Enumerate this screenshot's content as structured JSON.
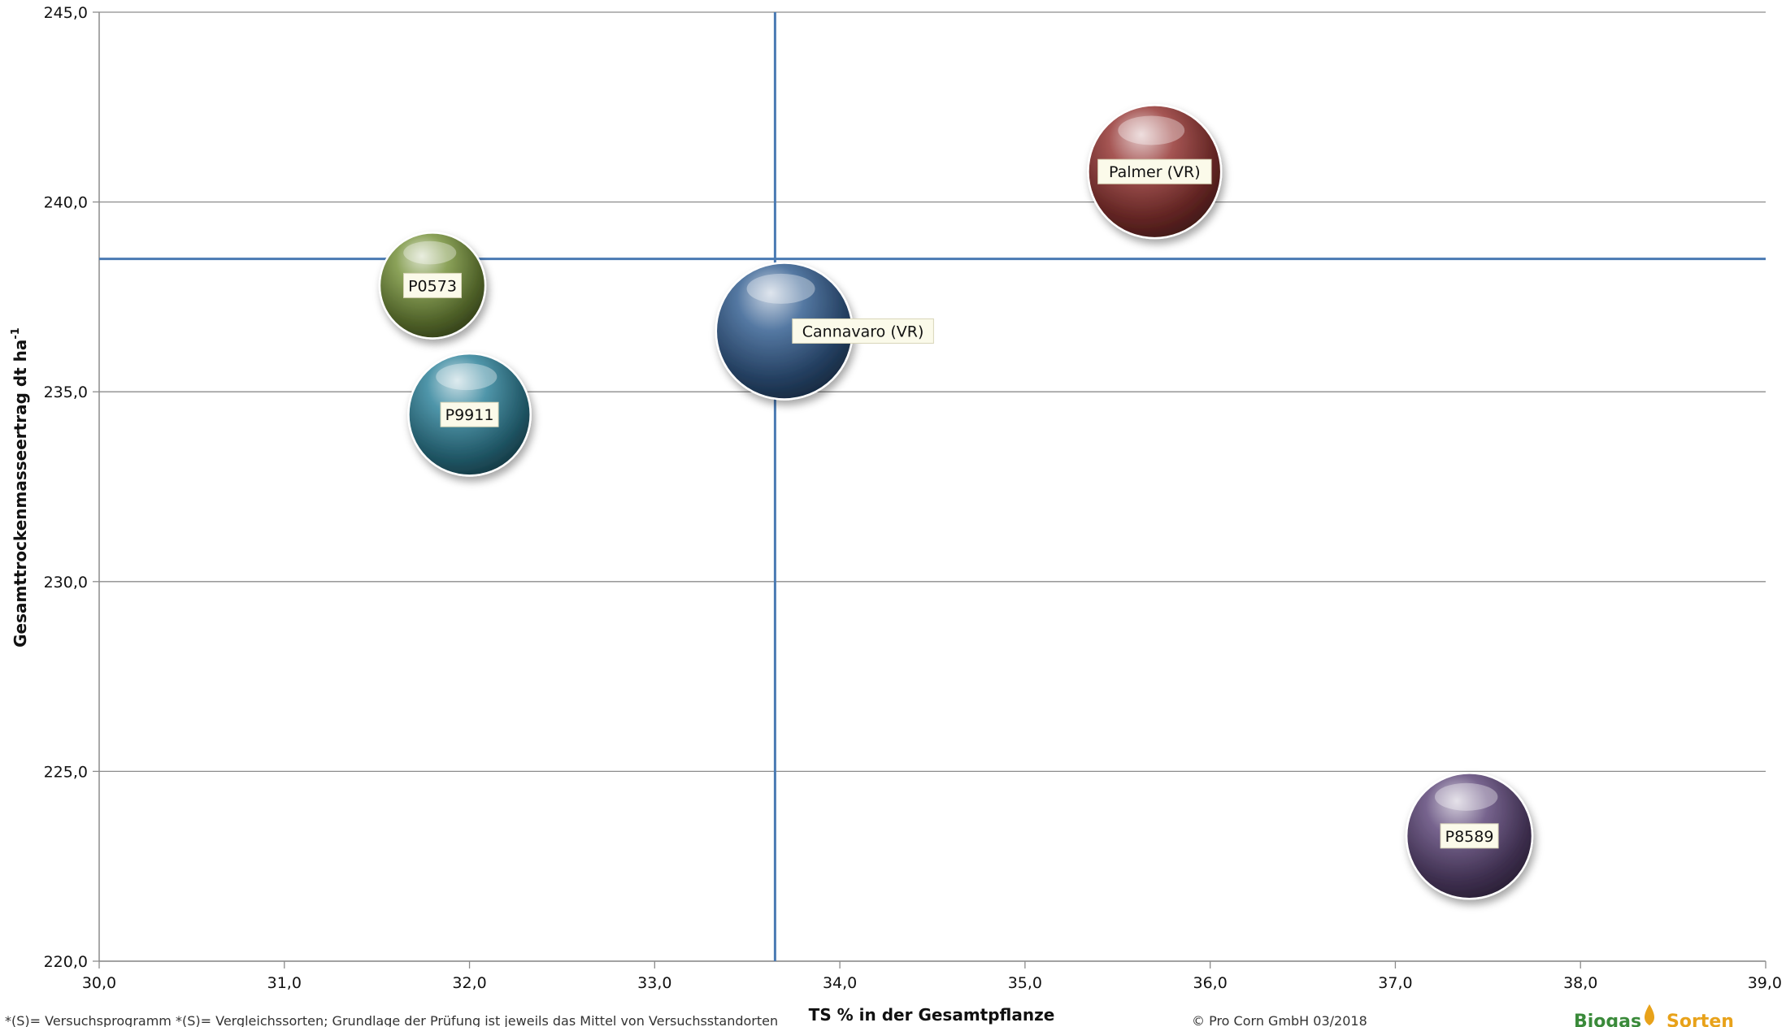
{
  "chart_data": {
    "type": "bubble",
    "xlabel": "TS % in der Gesamtpflanze",
    "ylabel": "Gesamttrockenmasseertrag dt ha",
    "ylabel_superscript": "-1",
    "xlim": [
      30.0,
      39.0
    ],
    "ylim": [
      220.0,
      245.0
    ],
    "x_ticks": [
      "30,0",
      "31,0",
      "32,0",
      "33,0",
      "34,0",
      "35,0",
      "36,0",
      "37,0",
      "38,0",
      "39,0"
    ],
    "y_ticks": [
      "220,0",
      "225,0",
      "230,0",
      "235,0",
      "240,0",
      "245,0"
    ],
    "x_tick_values": [
      30,
      31,
      32,
      33,
      34,
      35,
      36,
      37,
      38,
      39
    ],
    "y_tick_values": [
      220,
      225,
      230,
      235,
      240,
      245
    ],
    "grid": "horizontal",
    "reference_lines": {
      "x": 33.65,
      "y": 238.5,
      "color": "#4a7ab3"
    },
    "points": [
      {
        "name": "P0573",
        "x": 31.8,
        "y": 237.8,
        "size": 0.6,
        "color": "#76923c"
      },
      {
        "name": "P9911",
        "x": 32.0,
        "y": 234.4,
        "size": 0.8,
        "color": "#31849b"
      },
      {
        "name": "Cannavaro (VR)",
        "x": 33.7,
        "y": 236.6,
        "size": 1.0,
        "color": "#366092"
      },
      {
        "name": "Palmer (VR)",
        "x": 35.7,
        "y": 240.8,
        "size": 0.95,
        "color": "#953735"
      },
      {
        "name": "P8589",
        "x": 37.4,
        "y": 223.3,
        "size": 0.85,
        "color": "#5f497a"
      }
    ]
  },
  "footer": {
    "note": "*(S)= Versuchsprogramm *(S)= Vergleichssorten; Grundlage der Prüfung ist jeweils das Mittel von Versuchsstandorten",
    "copyright": "© Pro Corn GmbH 03/2018"
  },
  "logo": {
    "word1": "Biogas",
    "word2": "Sorten",
    "color1": "#3a8a3a",
    "color2": "#e8a21a"
  }
}
